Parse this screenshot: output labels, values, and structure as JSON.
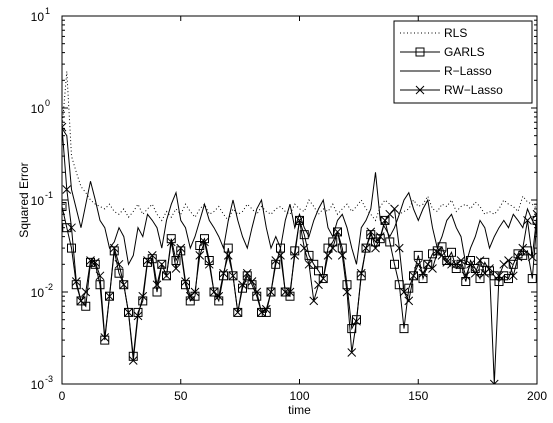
{
  "chart_data": {
    "type": "line",
    "title": "",
    "xlabel": "time",
    "ylabel": "Squared Error",
    "xlim": [
      0,
      200
    ],
    "ylim": [
      0.001,
      10
    ],
    "yscale": "log",
    "grid": false,
    "legend_position": "top-right",
    "x_ticks": [
      0,
      50,
      100,
      150,
      200
    ],
    "x_tick_labels": [
      "0",
      "50",
      "100",
      "150",
      "200"
    ],
    "y_ticks": [
      0.001,
      0.01,
      0.1,
      1,
      10
    ],
    "y_tick_labels": [
      {
        "base": "10",
        "exp": "-3"
      },
      {
        "base": "10",
        "exp": "-2"
      },
      {
        "base": "10",
        "exp": "-1"
      },
      {
        "base": "10",
        "exp": "0"
      },
      {
        "base": "10",
        "exp": "1"
      }
    ],
    "series": [
      {
        "name": "RLS",
        "style": "dotted",
        "marker": "none",
        "x": [
          0,
          2,
          4,
          6,
          8,
          10,
          12,
          14,
          16,
          18,
          20,
          22,
          24,
          26,
          28,
          30,
          32,
          34,
          36,
          38,
          40,
          42,
          44,
          46,
          48,
          50,
          52,
          54,
          56,
          58,
          60,
          62,
          64,
          66,
          68,
          70,
          72,
          74,
          76,
          78,
          80,
          82,
          84,
          86,
          88,
          90,
          92,
          94,
          96,
          98,
          100,
          102,
          104,
          106,
          108,
          110,
          112,
          114,
          116,
          118,
          120,
          122,
          124,
          126,
          128,
          130,
          132,
          134,
          136,
          138,
          140,
          142,
          144,
          146,
          148,
          150,
          152,
          154,
          156,
          158,
          160,
          162,
          164,
          166,
          168,
          170,
          172,
          174,
          176,
          178,
          180,
          182,
          184,
          186,
          188,
          190,
          192,
          194,
          196,
          198,
          200
        ],
        "values": [
          0.6,
          2.5,
          0.3,
          0.2,
          0.14,
          0.12,
          0.1,
          0.09,
          0.085,
          0.08,
          0.09,
          0.075,
          0.07,
          0.08,
          0.065,
          0.075,
          0.09,
          0.07,
          0.08,
          0.09,
          0.07,
          0.06,
          0.075,
          0.065,
          0.08,
          0.07,
          0.09,
          0.075,
          0.065,
          0.08,
          0.09,
          0.07,
          0.075,
          0.085,
          0.07,
          0.06,
          0.08,
          0.07,
          0.075,
          0.09,
          0.08,
          0.07,
          0.085,
          0.075,
          0.07,
          0.08,
          0.085,
          0.075,
          0.07,
          0.09,
          0.08,
          0.075,
          0.1,
          0.085,
          0.07,
          0.08,
          0.075,
          0.09,
          0.07,
          0.08,
          0.09,
          0.075,
          0.085,
          0.1,
          0.08,
          0.07,
          0.06,
          0.085,
          0.1,
          0.09,
          0.08,
          0.07,
          0.075,
          0.08,
          0.1,
          0.085,
          0.09,
          0.11,
          0.08,
          0.075,
          0.09,
          0.085,
          0.1,
          0.075,
          0.085,
          0.09,
          0.08,
          0.095,
          0.085,
          0.07,
          0.075,
          0.07,
          0.08,
          0.1,
          0.09,
          0.085,
          0.075,
          0.11,
          0.095,
          0.09,
          0.08
        ]
      },
      {
        "name": "GARLS",
        "style": "solid",
        "marker": "square",
        "x": [
          0,
          2,
          4,
          6,
          8,
          10,
          12,
          14,
          16,
          18,
          20,
          22,
          24,
          26,
          28,
          30,
          32,
          34,
          36,
          38,
          40,
          42,
          44,
          46,
          48,
          50,
          52,
          54,
          56,
          58,
          60,
          62,
          64,
          66,
          68,
          70,
          72,
          74,
          76,
          78,
          80,
          82,
          84,
          86,
          88,
          90,
          92,
          94,
          96,
          98,
          100,
          102,
          104,
          106,
          108,
          110,
          112,
          114,
          116,
          118,
          120,
          122,
          124,
          126,
          128,
          130,
          132,
          134,
          136,
          138,
          140,
          142,
          144,
          146,
          148,
          150,
          152,
          154,
          156,
          158,
          160,
          162,
          164,
          166,
          168,
          170,
          172,
          174,
          176,
          178,
          180,
          182,
          184,
          186,
          188,
          190,
          192,
          194,
          196,
          198,
          200
        ],
        "values": [
          0.085,
          0.05,
          0.03,
          0.012,
          0.008,
          0.007,
          0.021,
          0.02,
          0.012,
          0.003,
          0.009,
          0.028,
          0.016,
          0.012,
          0.006,
          0.002,
          0.006,
          0.008,
          0.021,
          0.023,
          0.01,
          0.02,
          0.015,
          0.038,
          0.022,
          0.028,
          0.012,
          0.008,
          0.009,
          0.032,
          0.038,
          0.022,
          0.01,
          0.008,
          0.015,
          0.03,
          0.015,
          0.006,
          0.011,
          0.015,
          0.012,
          0.009,
          0.006,
          0.006,
          0.01,
          0.02,
          0.03,
          0.01,
          0.009,
          0.028,
          0.06,
          0.042,
          0.025,
          0.02,
          0.017,
          0.014,
          0.03,
          0.035,
          0.045,
          0.03,
          0.012,
          0.004,
          0.005,
          0.015,
          0.03,
          0.042,
          0.035,
          0.038,
          0.06,
          0.035,
          0.02,
          0.012,
          0.004,
          0.011,
          0.015,
          0.025,
          0.014,
          0.02,
          0.026,
          0.028,
          0.031,
          0.022,
          0.027,
          0.018,
          0.02,
          0.013,
          0.022,
          0.018,
          0.014,
          0.021,
          0.017,
          0.015,
          0.013,
          0.015,
          0.014,
          0.02,
          0.026,
          0.025,
          0.028,
          0.014,
          0.06
        ]
      },
      {
        "name": "R−Lasso",
        "style": "solid",
        "marker": "none",
        "x": [
          0,
          2,
          4,
          6,
          8,
          10,
          12,
          14,
          16,
          18,
          20,
          22,
          24,
          26,
          28,
          30,
          32,
          34,
          36,
          38,
          40,
          42,
          44,
          46,
          48,
          50,
          52,
          54,
          56,
          58,
          60,
          62,
          64,
          66,
          68,
          70,
          72,
          74,
          76,
          78,
          80,
          82,
          84,
          86,
          88,
          90,
          92,
          94,
          96,
          98,
          100,
          102,
          104,
          106,
          108,
          110,
          112,
          114,
          116,
          118,
          120,
          122,
          124,
          126,
          128,
          130,
          132,
          134,
          136,
          138,
          140,
          142,
          144,
          146,
          148,
          150,
          152,
          154,
          156,
          158,
          160,
          162,
          164,
          166,
          168,
          170,
          172,
          174,
          176,
          178,
          180,
          182,
          184,
          186,
          188,
          190,
          192,
          194,
          196,
          198,
          200
        ],
        "values": [
          0.6,
          0.5,
          0.13,
          0.08,
          0.05,
          0.09,
          0.16,
          0.1,
          0.06,
          0.05,
          0.03,
          0.035,
          0.05,
          0.04,
          0.02,
          0.025,
          0.05,
          0.04,
          0.07,
          0.06,
          0.05,
          0.03,
          0.06,
          0.09,
          0.12,
          0.06,
          0.05,
          0.03,
          0.04,
          0.06,
          0.09,
          0.06,
          0.05,
          0.04,
          0.03,
          0.06,
          0.1,
          0.06,
          0.04,
          0.03,
          0.05,
          0.08,
          0.1,
          0.05,
          0.03,
          0.04,
          0.03,
          0.06,
          0.09,
          0.05,
          0.07,
          0.05,
          0.04,
          0.06,
          0.08,
          0.1,
          0.05,
          0.04,
          0.06,
          0.07,
          0.05,
          0.03,
          0.02,
          0.05,
          0.06,
          0.08,
          0.2,
          0.06,
          0.05,
          0.04,
          0.05,
          0.07,
          0.1,
          0.12,
          0.08,
          0.06,
          0.08,
          0.1,
          0.05,
          0.03,
          0.04,
          0.06,
          0.07,
          0.05,
          0.04,
          0.02,
          0.03,
          0.04,
          0.06,
          0.05,
          0.03,
          0.04,
          0.05,
          0.06,
          0.05,
          0.07,
          0.06,
          0.05,
          0.08,
          0.06,
          0.05
        ]
      },
      {
        "name": "RW−Lasso",
        "style": "solid",
        "marker": "x",
        "x": [
          0,
          2,
          4,
          6,
          8,
          10,
          12,
          14,
          16,
          18,
          20,
          22,
          24,
          26,
          28,
          30,
          32,
          34,
          36,
          38,
          40,
          42,
          44,
          46,
          48,
          50,
          52,
          54,
          56,
          58,
          60,
          62,
          64,
          66,
          68,
          70,
          72,
          74,
          76,
          78,
          80,
          82,
          84,
          86,
          88,
          90,
          92,
          94,
          96,
          98,
          100,
          102,
          104,
          106,
          108,
          110,
          112,
          114,
          116,
          118,
          120,
          122,
          124,
          126,
          128,
          130,
          132,
          134,
          136,
          138,
          140,
          142,
          144,
          146,
          148,
          150,
          152,
          154,
          156,
          158,
          160,
          162,
          164,
          166,
          168,
          170,
          172,
          174,
          176,
          178,
          180,
          182,
          184,
          186,
          188,
          190,
          192,
          194,
          196,
          198,
          200
        ],
        "values": [
          0.62,
          0.13,
          0.05,
          0.013,
          0.008,
          0.01,
          0.022,
          0.021,
          0.015,
          0.0032,
          0.009,
          0.03,
          0.02,
          0.012,
          0.006,
          0.0018,
          0.0055,
          0.009,
          0.022,
          0.025,
          0.012,
          0.02,
          0.015,
          0.035,
          0.018,
          0.03,
          0.013,
          0.009,
          0.01,
          0.025,
          0.035,
          0.02,
          0.01,
          0.009,
          0.016,
          0.025,
          0.015,
          0.006,
          0.012,
          0.016,
          0.013,
          0.01,
          0.006,
          0.0065,
          0.01,
          0.022,
          0.025,
          0.01,
          0.01,
          0.025,
          0.06,
          0.03,
          0.02,
          0.008,
          0.012,
          0.014,
          0.025,
          0.03,
          0.045,
          0.025,
          0.01,
          0.0022,
          0.0048,
          0.016,
          0.03,
          0.045,
          0.03,
          0.04,
          0.06,
          0.07,
          0.08,
          0.03,
          0.01,
          0.008,
          0.015,
          0.02,
          0.016,
          0.02,
          0.018,
          0.027,
          0.025,
          0.021,
          0.02,
          0.02,
          0.022,
          0.015,
          0.02,
          0.016,
          0.022,
          0.016,
          0.018,
          0.001,
          0.015,
          0.02,
          0.022,
          0.015,
          0.024,
          0.03,
          0.06,
          0.024,
          0.07
        ]
      }
    ]
  }
}
